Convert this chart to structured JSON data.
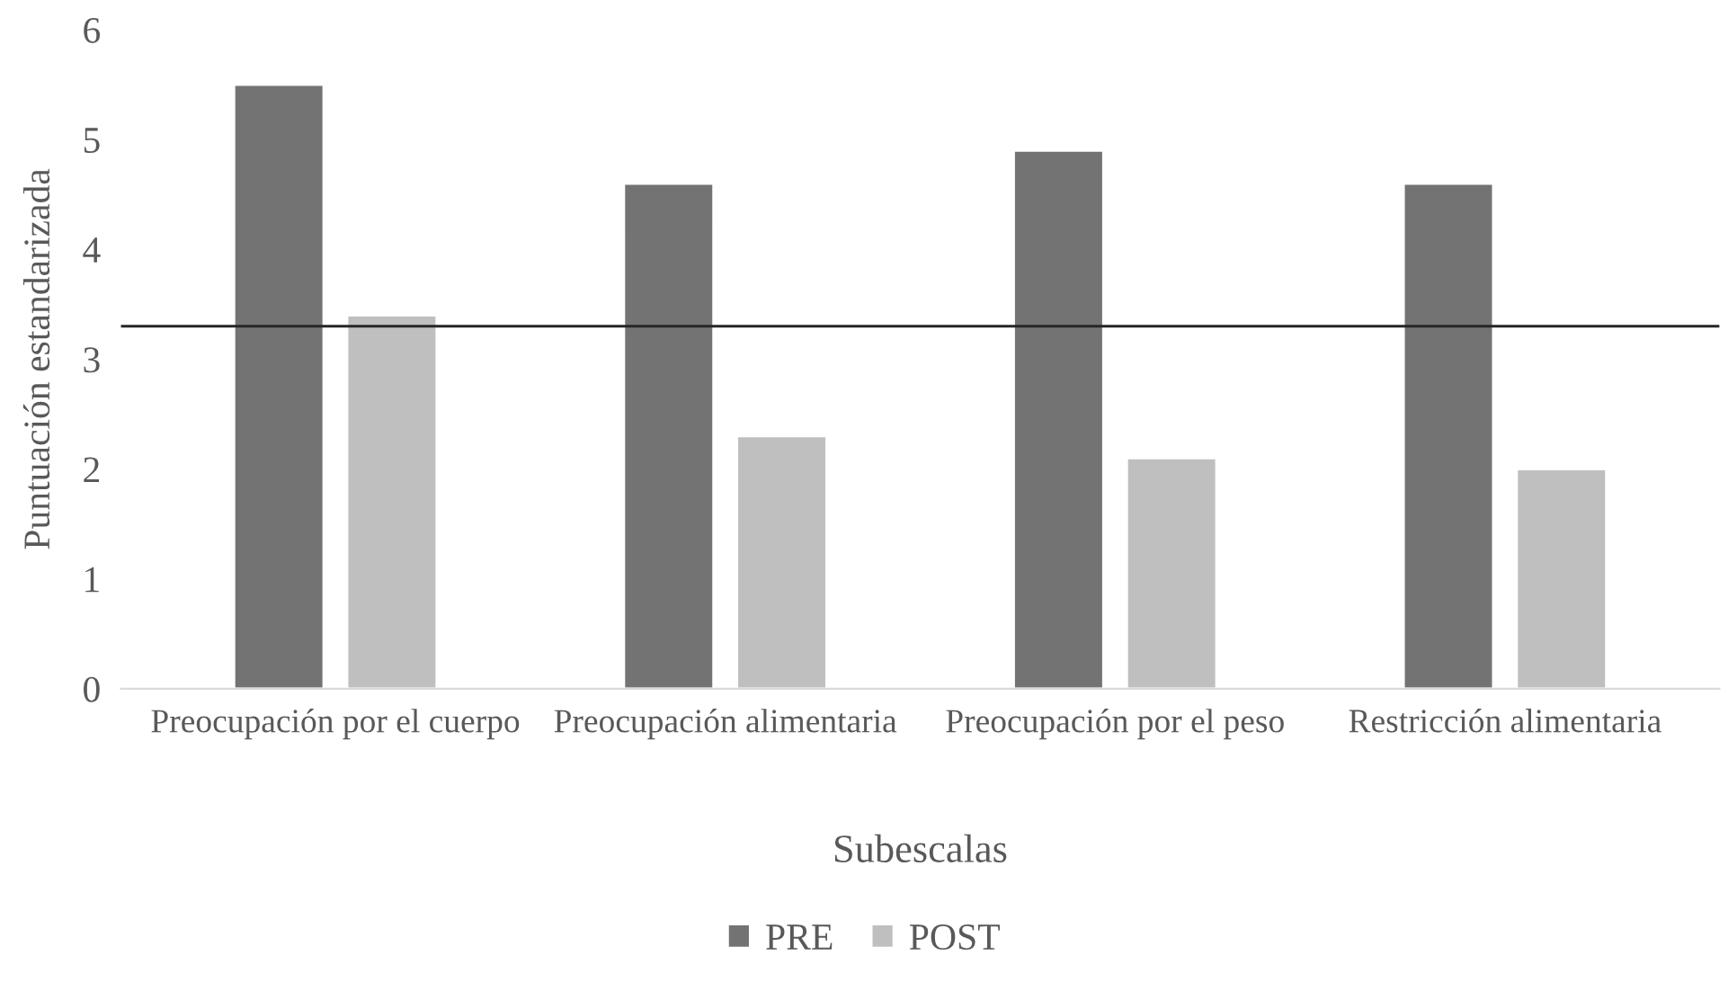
{
  "chart_data": {
    "type": "bar",
    "xlabel": "Subescalas",
    "ylabel": "Puntuación estandarizada",
    "categories": [
      "Preocupación por el cuerpo",
      "Preocupación alimentaria",
      "Preocupación por el peso",
      "Restricción alimentaria"
    ],
    "series": [
      {
        "name": "PRE",
        "color": "#737373",
        "values": [
          5.5,
          4.6,
          4.9,
          4.6
        ]
      },
      {
        "name": "POST",
        "color": "#bfbfbf",
        "values": [
          3.4,
          2.3,
          2.1,
          2.0
        ]
      }
    ],
    "ylim": [
      0,
      6
    ],
    "yticks": [
      0,
      1,
      2,
      3,
      4,
      5,
      6
    ],
    "grid": false,
    "legend": "bottom",
    "ref_lines": [
      {
        "axis": "y",
        "value": 3.3,
        "color": "#262626"
      }
    ]
  }
}
